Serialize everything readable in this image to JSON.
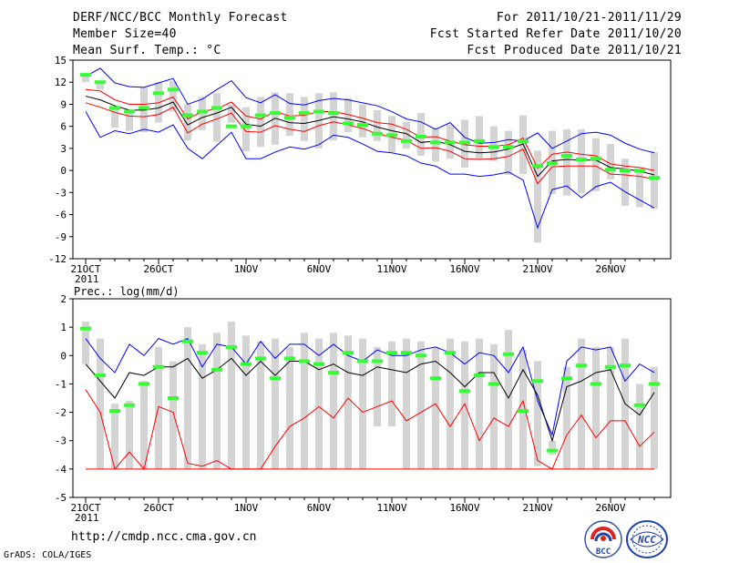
{
  "header": {
    "title": "DERF/NCC/BCC Monthly Forecast",
    "member_size": "Member Size=40",
    "variable": "Mean Surf. Temp.: °C",
    "period": "For 2011/10/21-2011/11/29",
    "started": "Fcst Started Refer Date 2011/10/20",
    "produced": "Fcst Produced Date 2011/10/21"
  },
  "footer": {
    "url": "http://cmdp.ncc.cma.gov.cn",
    "grads": "GrADS: COLA/IGES",
    "logo_bcc": "BCC",
    "logo_ncc": "NCC"
  },
  "colors": {
    "envelope": "#0000ff",
    "mean": "#000000",
    "spread": "#ff0000",
    "observed": "#33ff33",
    "bar": "#d4d4d4"
  },
  "chart_data": [
    {
      "type": "line",
      "name": "temperature",
      "title": "Mean Surf. Temp.: °C",
      "ylim": [
        -12,
        15
      ],
      "yticks": [
        -12,
        -9,
        -6,
        -3,
        0,
        3,
        6,
        9,
        12,
        15
      ],
      "x_tick_labels": [
        "21OCT",
        "26OCT",
        "1NOV",
        "6NOV",
        "11NOV",
        "16NOV",
        "21NOV",
        "26NOV"
      ],
      "x_tick_positions": [
        1,
        6,
        12,
        17,
        22,
        27,
        32,
        37
      ],
      "year_label": "2011",
      "days": 40,
      "series": [
        {
          "name": "max",
          "values": [
            12.8,
            13.9,
            11.9,
            11.4,
            11.3,
            11.9,
            12.5,
            9.0,
            9.7,
            11.0,
            12.2,
            9.9,
            9.2,
            10.3,
            9.1,
            8.9,
            9.5,
            9.8,
            9.6,
            9.2,
            8.8,
            8.0,
            7.0,
            6.6,
            5.6,
            6.5,
            4.5,
            3.7,
            3.8,
            4.2,
            4.0,
            5.1,
            3.0,
            4.0,
            5.0,
            5.2,
            4.8,
            3.7,
            2.9,
            2.4
          ]
        },
        {
          "name": "mean_plus",
          "values": [
            11.0,
            10.8,
            9.6,
            9.0,
            9.0,
            9.2,
            10.0,
            7.0,
            8.0,
            8.4,
            9.3,
            7.4,
            7.0,
            8.0,
            7.4,
            7.5,
            8.0,
            8.0,
            7.6,
            7.1,
            6.5,
            6.3,
            5.6,
            4.5,
            4.6,
            4.0,
            3.5,
            3.3,
            3.3,
            3.5,
            4.4,
            0.3,
            2.2,
            2.5,
            2.2,
            2.0,
            0.9,
            0.6,
            0.4,
            0.0
          ]
        },
        {
          "name": "mean",
          "values": [
            10.1,
            9.6,
            8.8,
            8.2,
            8.2,
            8.5,
            9.3,
            6.2,
            7.2,
            7.8,
            8.6,
            6.3,
            6.0,
            7.1,
            6.5,
            6.4,
            6.8,
            7.3,
            7.0,
            6.6,
            5.9,
            5.4,
            5.0,
            3.8,
            4.0,
            3.5,
            2.6,
            2.4,
            2.5,
            2.9,
            3.6,
            -0.8,
            1.3,
            1.5,
            1.4,
            1.4,
            0.4,
            0.2,
            -0.1,
            -0.6
          ]
        },
        {
          "name": "mean_minus",
          "values": [
            9.2,
            8.6,
            7.9,
            7.4,
            7.3,
            7.6,
            8.6,
            5.1,
            6.3,
            7.0,
            7.8,
            5.3,
            5.2,
            6.1,
            5.6,
            5.3,
            6.1,
            6.6,
            6.2,
            5.7,
            5.0,
            4.5,
            4.1,
            3.0,
            3.1,
            2.6,
            1.6,
            1.5,
            1.6,
            1.9,
            2.9,
            -1.8,
            0.5,
            0.6,
            0.6,
            0.6,
            -0.5,
            -0.6,
            -0.8,
            -1.2
          ]
        },
        {
          "name": "min",
          "values": [
            8.0,
            4.5,
            5.4,
            5.0,
            5.6,
            5.2,
            6.2,
            3.0,
            1.6,
            3.4,
            5.2,
            1.6,
            1.6,
            2.5,
            3.2,
            2.9,
            3.5,
            4.8,
            4.5,
            3.6,
            2.6,
            2.4,
            2.0,
            1.0,
            0.6,
            -0.5,
            -0.5,
            -0.8,
            -0.6,
            -0.2,
            -1.3,
            -7.8,
            -2.6,
            -2.1,
            -3.7,
            -2.2,
            -1.6,
            -2.9,
            -4.0,
            -5.1
          ]
        },
        {
          "name": "observed",
          "values": [
            13.0,
            12.0,
            8.5,
            8.0,
            8.5,
            10.5,
            11.0,
            7.5,
            8.0,
            8.5,
            6.0,
            6.0,
            7.5,
            7.8,
            7.2,
            7.8,
            8.0,
            7.8,
            6.4,
            6.2,
            5.0,
            4.8,
            4.0,
            4.6,
            3.8,
            3.8,
            3.8,
            4.0,
            3.2,
            3.2,
            4.0,
            0.6,
            1.0,
            2.0,
            1.5,
            1.6,
            0.1,
            0.0,
            0.0,
            -1.0
          ]
        }
      ],
      "boxes": {
        "high": [
          13.0,
          12.0,
          8.5,
          8.0,
          11.3,
          12.0,
          12.2,
          9.0,
          10.0,
          10.5,
          9.0,
          8.6,
          10.0,
          10.6,
          10.5,
          10.0,
          10.5,
          10.6,
          9.8,
          9.0,
          8.2,
          7.4,
          6.6,
          7.8,
          5.8,
          6.2,
          6.9,
          7.4,
          6.0,
          5.4,
          7.5,
          2.7,
          5.4,
          5.6,
          5.6,
          4.4,
          3.6,
          1.6,
          0.2,
          2.5
        ],
        "low": [
          12.0,
          11.0,
          5.8,
          5.4,
          5.2,
          6.5,
          8.0,
          4.1,
          5.5,
          3.9,
          6.5,
          2.6,
          3.2,
          3.5,
          4.7,
          4.0,
          3.0,
          4.1,
          5.2,
          4.5,
          4.0,
          2.5,
          3.0,
          2.0,
          1.2,
          1.6,
          0.4,
          1.5,
          1.3,
          -0.6,
          -0.5,
          -9.8,
          -3.2,
          -3.4,
          -3.1,
          -2.8,
          -1.2,
          -4.8,
          -5.0,
          -5.2
        ]
      }
    },
    {
      "type": "line",
      "name": "precipitation",
      "title": "Prec.: log(mm/d)",
      "ylim": [
        -5,
        2
      ],
      "yticks": [
        -5,
        -4,
        -3,
        -2,
        -1,
        0,
        1,
        2
      ],
      "x_tick_labels": [
        "21OCT",
        "26OCT",
        "1NOV",
        "6NOV",
        "11NOV",
        "16NOV",
        "21NOV",
        "26NOV"
      ],
      "x_tick_positions": [
        1,
        6,
        12,
        17,
        22,
        27,
        32,
        37
      ],
      "year_label": "2011",
      "days": 40,
      "series": [
        {
          "name": "max",
          "values": [
            0.6,
            -0.1,
            -0.6,
            0.4,
            0.0,
            0.6,
            0.4,
            0.6,
            -0.4,
            0.4,
            0.3,
            -0.3,
            0.5,
            -0.1,
            0.4,
            0.4,
            0.0,
            0.4,
            0.0,
            -0.2,
            0.2,
            0.0,
            0.0,
            0.2,
            0.3,
            0.1,
            -0.3,
            0.1,
            0.0,
            -0.6,
            0.3,
            -1.6,
            -2.8,
            -0.2,
            0.3,
            0.2,
            0.3,
            -0.9,
            -0.3,
            -0.6
          ]
        },
        {
          "name": "mean",
          "values": [
            -0.3,
            -0.9,
            -1.5,
            -0.6,
            -0.7,
            -0.4,
            -0.4,
            -0.1,
            -0.8,
            -0.5,
            -0.1,
            -0.7,
            -0.2,
            -0.7,
            -0.2,
            -0.2,
            -0.5,
            -0.3,
            -0.6,
            -0.7,
            -0.4,
            -0.5,
            -0.6,
            -0.3,
            -0.2,
            -0.6,
            -1.1,
            -0.6,
            -0.6,
            -1.5,
            -0.5,
            -1.4,
            -3.0,
            -1.1,
            -0.9,
            -0.6,
            -0.5,
            -1.7,
            -2.1,
            -1.3
          ]
        },
        {
          "name": "min",
          "values": [
            -1.2,
            -2.0,
            -4.0,
            -3.4,
            -4.0,
            -1.8,
            -2.0,
            -3.8,
            -3.9,
            -3.7,
            -4.0,
            -4.0,
            -4.0,
            -3.2,
            -2.5,
            -2.2,
            -1.8,
            -2.2,
            -1.5,
            -2.0,
            -1.8,
            -1.6,
            -2.3,
            -2.0,
            -1.7,
            -2.5,
            -1.7,
            -3.0,
            -2.2,
            -2.5,
            -1.6,
            -3.7,
            -4.0,
            -2.8,
            -2.1,
            -2.9,
            -2.3,
            -2.3,
            -3.2,
            -2.7
          ]
        },
        {
          "name": "observed",
          "values": [
            0.95,
            -0.7,
            -1.95,
            -1.75,
            -1.0,
            -0.4,
            -1.5,
            0.5,
            0.1,
            -0.5,
            0.3,
            -0.3,
            -0.1,
            -0.8,
            -0.1,
            -0.2,
            -0.3,
            -0.6,
            0.1,
            -0.2,
            -0.2,
            0.1,
            0.1,
            0.0,
            -0.8,
            0.1,
            -1.25,
            -0.7,
            -1.0,
            0.05,
            -1.95,
            -0.9,
            -3.35,
            -0.8,
            -0.35,
            -1.0,
            -0.4,
            -0.35,
            -1.75,
            -1.0
          ]
        }
      ],
      "floor_series": {
        "name": "lower_bound",
        "value": -4
      },
      "bars": {
        "high": [
          1.2,
          0.6,
          -1.7,
          -1.6,
          -0.9,
          0.3,
          -0.2,
          1.0,
          0.4,
          0.8,
          1.2,
          0.7,
          0.5,
          0.6,
          0.3,
          0.8,
          0.6,
          0.8,
          0.7,
          0.6,
          0.3,
          0.5,
          0.6,
          0.5,
          0.3,
          0.6,
          0.5,
          0.6,
          0.4,
          0.9,
          0.2,
          -0.2,
          -3.0,
          -0.4,
          0.6,
          0.3,
          0.3,
          0.6,
          -1.0,
          -0.4
        ],
        "low": [
          -0.3,
          -4.0,
          -4.0,
          -4.0,
          -4.0,
          -4.0,
          -4.0,
          -4.0,
          -4.0,
          -4.0,
          -4.0,
          -4.0,
          -4.0,
          -4.0,
          -4.0,
          -4.0,
          -4.0,
          -4.0,
          -4.0,
          -4.0,
          -2.5,
          -2.5,
          -4.0,
          -4.0,
          -4.0,
          -4.0,
          -4.0,
          -4.0,
          -4.0,
          -4.0,
          -4.0,
          -3.9,
          -3.5,
          -4.0,
          -4.0,
          -4.0,
          -4.0,
          -4.0,
          -4.0,
          -4.0
        ]
      }
    }
  ]
}
